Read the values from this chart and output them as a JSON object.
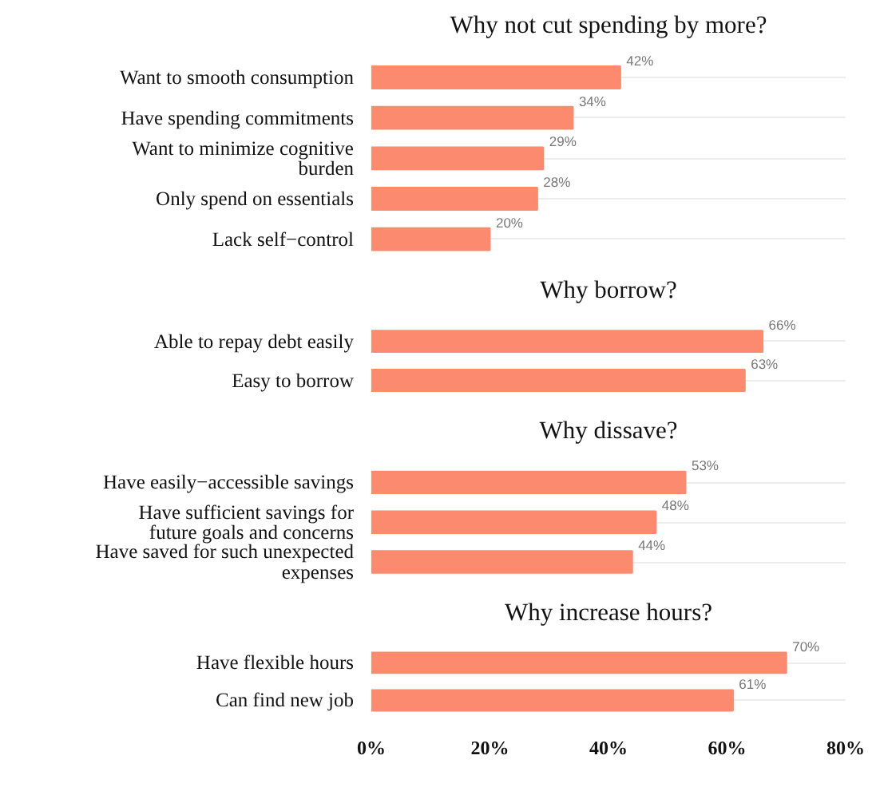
{
  "chart_data": [
    {
      "type": "bar",
      "orientation": "horizontal",
      "title": "Why not cut spending by more?",
      "categories": [
        "Want to smooth consumption",
        "Have spending commitments",
        "Want to minimize cognitive burden",
        "Only spend on essentials",
        "Lack self−control"
      ],
      "values": [
        42,
        34,
        29,
        28,
        20
      ],
      "value_labels": [
        "42%",
        "34%",
        "29%",
        "28%",
        "20%"
      ],
      "color": "#fb8a6e",
      "xlim": [
        0,
        80
      ],
      "xticks": [
        {
          "value": 0,
          "label": "0%"
        },
        {
          "value": 20,
          "label": "20%"
        },
        {
          "value": 40,
          "label": "40%"
        },
        {
          "value": 60,
          "label": "60%"
        },
        {
          "value": 80,
          "label": "80%"
        }
      ],
      "grid": "y",
      "tick_labels": "y"
    },
    {
      "type": "bar",
      "orientation": "horizontal",
      "title": "Why borrow?",
      "categories": [
        "Able to repay debt easily",
        "Easy to borrow"
      ],
      "values": [
        66,
        63
      ],
      "value_labels": [
        "66%",
        "63%"
      ],
      "color": "#fb8a6e",
      "xlim": [
        0,
        80
      ],
      "xticks": [
        {
          "value": 0,
          "label": "0%"
        },
        {
          "value": 20,
          "label": "20%"
        },
        {
          "value": 40,
          "label": "40%"
        },
        {
          "value": 60,
          "label": "60%"
        },
        {
          "value": 80,
          "label": "80%"
        }
      ],
      "grid": "y",
      "tick_labels": "y"
    },
    {
      "type": "bar",
      "orientation": "horizontal",
      "title": "Why dissave?",
      "categories": [
        "Have easily−accessible savings",
        "Have sufficient savings for future goals and concerns",
        "Have saved for such unexpected expenses"
      ],
      "values": [
        53,
        48,
        44
      ],
      "value_labels": [
        "53%",
        "48%",
        "44%"
      ],
      "color": "#fb8a6e",
      "xlim": [
        0,
        80
      ],
      "xticks": [
        {
          "value": 0,
          "label": "0%"
        },
        {
          "value": 20,
          "label": "20%"
        },
        {
          "value": 40,
          "label": "40%"
        },
        {
          "value": 60,
          "label": "60%"
        },
        {
          "value": 80,
          "label": "80%"
        }
      ],
      "grid": "y",
      "tick_labels": "y"
    },
    {
      "type": "bar",
      "orientation": "horizontal",
      "title": "Why increase hours?",
      "categories": [
        "Have flexible hours",
        "Can find new job"
      ],
      "values": [
        70,
        61
      ],
      "value_labels": [
        "70%",
        "61%"
      ],
      "color": "#fb8a6e",
      "xlim": [
        0,
        80
      ],
      "xticks": [
        {
          "value": 0,
          "label": "0%"
        },
        {
          "value": 20,
          "label": "20%"
        },
        {
          "value": 40,
          "label": "40%"
        },
        {
          "value": 60,
          "label": "60%"
        },
        {
          "value": 80,
          "label": "80%"
        }
      ],
      "grid": "y"
    }
  ]
}
